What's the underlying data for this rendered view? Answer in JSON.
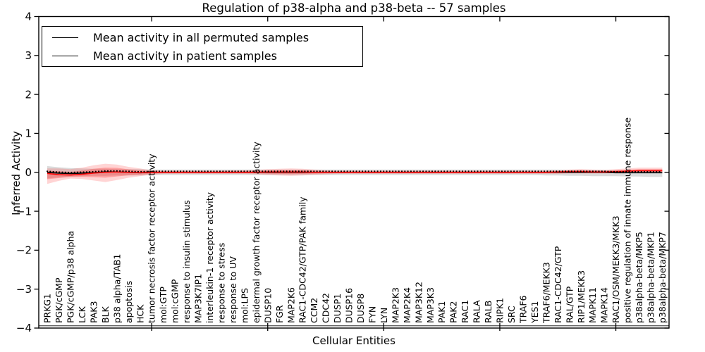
{
  "title": "Regulation of p38-alpha and p38-beta -- 57 samples",
  "legend": {
    "items": [
      {
        "label": "Mean activity in all permuted samples",
        "color": "#000000"
      },
      {
        "label": "Mean activity in patient samples",
        "color": "#ff0000"
      }
    ]
  },
  "axes": {
    "xlabel": "Cellular Entities",
    "ylabel": "Inferred Activity",
    "ytick_labels": [
      "4",
      "3",
      "2",
      "1",
      "0",
      "−1",
      "−2",
      "−3",
      "−4"
    ]
  },
  "colors": {
    "permuted_line": "#000000",
    "patient_line": "#ff0000",
    "permuted_band": "rgba(0,0,0,0.14)",
    "patient_band_outer": "rgba(255,60,60,0.22)",
    "patient_band_inner": "rgba(255,40,40,0.30)",
    "frame": "#000000"
  },
  "chart_data": {
    "type": "line",
    "title": "Regulation of p38-alpha and p38-beta -- 57 samples",
    "xlabel": "Cellular Entities",
    "ylabel": "Inferred Activity",
    "ylim": [
      -4,
      4
    ],
    "yticks": [
      4,
      3,
      2,
      1,
      0,
      -1,
      -2,
      -3,
      -4
    ],
    "grid": false,
    "legend_position": "upper left",
    "categories": [
      "PRKG1",
      "PGK/cGMP",
      "PGK/cGMP/p38 alpha",
      "LCK",
      "PAK3",
      "BLK",
      "p38 alpha/TAB1",
      "apoptosis",
      "HCK",
      "tumor necrosis factor receptor activity",
      "mol:GTP",
      "mol:cGMP",
      "response to insulin stimulus",
      "MAP3K7IP1",
      "interleukin-1 receptor activity",
      "response to stress",
      "response to UV",
      "mol:LPS",
      "epidermal growth factor receptor activity",
      "DUSP10",
      "FGR",
      "MAP2K6",
      "RAC1-CDC42/GTP/PAK family",
      "CCM2",
      "CDC42",
      "DUSP1",
      "DUSP16",
      "DUSP8",
      "FYN",
      "LYN",
      "MAP2K3",
      "MAP2K4",
      "MAP3K12",
      "MAP3K3",
      "PAK1",
      "PAK2",
      "RAC1",
      "RALA",
      "RALB",
      "RIPK1",
      "SRC",
      "TRAF6",
      "YES1",
      "TRAF6/MEKK3",
      "RAC1-CDC42/GTP",
      "RAL/GTP",
      "RIP1/MEKK3",
      "MAPK11",
      "MAPK14",
      "RAC1/OSM/MEKK3/MKK3",
      "positive regulation of innate immune response",
      "p38alpha-beta/MKP5",
      "p38alpha-beta/MKP1",
      "p38alpha-beta/MKP7"
    ],
    "xticks_at_category_index": [
      9,
      19,
      29,
      39,
      49
    ],
    "series": [
      {
        "name": "Mean activity in all permuted samples",
        "color": "#000000",
        "values": [
          0,
          -0.02,
          -0.03,
          -0.02,
          -0.01,
          0.01,
          0.01,
          0,
          -0.01,
          0,
          0,
          0,
          0,
          0,
          0,
          0,
          0,
          0,
          0,
          0,
          0,
          0,
          0,
          0,
          0,
          0,
          0,
          0,
          0,
          0,
          0,
          0,
          0,
          0,
          0,
          0,
          0,
          0,
          0,
          0,
          0,
          0,
          0,
          0,
          0,
          0,
          0,
          0,
          0,
          -0.01,
          -0.01,
          -0.01,
          -0.01,
          -0.01
        ]
      },
      {
        "name": "Mean activity in patient samples",
        "color": "#ff0000",
        "values": [
          -0.03,
          -0.06,
          -0.07,
          -0.05,
          -0.02,
          0,
          0.01,
          0,
          -0.01,
          0,
          0,
          0,
          0,
          0,
          0,
          0,
          0,
          0,
          0,
          0.01,
          0.01,
          0.01,
          0.01,
          0,
          0,
          0,
          0,
          0,
          0,
          0,
          0,
          0,
          0,
          0,
          0,
          0,
          0,
          0,
          0,
          0,
          0,
          0,
          0,
          0,
          0.01,
          0.02,
          0.02,
          0.01,
          0.01,
          0.02,
          0.03,
          0.04,
          0.04,
          0.04
        ]
      }
    ],
    "bands": [
      {
        "name": "permuted samples range",
        "upper": [
          0.16,
          0.13,
          0.11,
          0.1,
          0.09,
          0.09,
          0.08,
          0.08,
          0.08,
          0.07,
          0.07,
          0.07,
          0.07,
          0.07,
          0.07,
          0.07,
          0.07,
          0.07,
          0.07,
          0.07,
          0.07,
          0.07,
          0.07,
          0.07,
          0.07,
          0.07,
          0.07,
          0.07,
          0.07,
          0.07,
          0.07,
          0.07,
          0.07,
          0.07,
          0.07,
          0.07,
          0.07,
          0.07,
          0.07,
          0.07,
          0.07,
          0.07,
          0.07,
          0.07,
          0.07,
          0.06,
          0.06,
          0.06,
          0.06,
          0.05,
          0.05,
          0.05,
          0.05,
          0.06
        ],
        "lower": [
          -0.16,
          -0.13,
          -0.11,
          -0.1,
          -0.09,
          -0.09,
          -0.08,
          -0.08,
          -0.08,
          -0.07,
          -0.07,
          -0.07,
          -0.07,
          -0.07,
          -0.07,
          -0.07,
          -0.07,
          -0.07,
          -0.07,
          -0.07,
          -0.07,
          -0.07,
          -0.07,
          -0.07,
          -0.07,
          -0.07,
          -0.07,
          -0.07,
          -0.07,
          -0.07,
          -0.07,
          -0.07,
          -0.07,
          -0.07,
          -0.07,
          -0.07,
          -0.07,
          -0.07,
          -0.07,
          -0.07,
          -0.07,
          -0.07,
          -0.07,
          -0.08,
          -0.08,
          -0.09,
          -0.09,
          -0.1,
          -0.1,
          -0.1,
          -0.11,
          -0.11,
          -0.12,
          -0.12
        ]
      },
      {
        "name": "patient samples range",
        "upper": [
          0.1,
          0.1,
          0.08,
          0.12,
          0.18,
          0.22,
          0.2,
          0.14,
          0.1,
          0.05,
          0.04,
          0.04,
          0.04,
          0.04,
          0.04,
          0.04,
          0.05,
          0.05,
          0.06,
          0.08,
          0.09,
          0.1,
          0.09,
          0.07,
          0.05,
          0.04,
          0.04,
          0.04,
          0.04,
          0.04,
          0.04,
          0.04,
          0.04,
          0.04,
          0.04,
          0.04,
          0.04,
          0.04,
          0.04,
          0.04,
          0.04,
          0.04,
          0.04,
          0.04,
          0.05,
          0.07,
          0.08,
          0.07,
          0.06,
          0.08,
          0.1,
          0.12,
          0.12,
          0.12
        ],
        "lower": [
          -0.3,
          -0.22,
          -0.16,
          -0.17,
          -0.21,
          -0.25,
          -0.2,
          -0.14,
          -0.1,
          -0.06,
          -0.04,
          -0.04,
          -0.04,
          -0.04,
          -0.04,
          -0.04,
          -0.04,
          -0.04,
          -0.05,
          -0.07,
          -0.08,
          -0.09,
          -0.08,
          -0.06,
          -0.05,
          -0.04,
          -0.04,
          -0.04,
          -0.04,
          -0.04,
          -0.04,
          -0.04,
          -0.04,
          -0.04,
          -0.04,
          -0.04,
          -0.04,
          -0.04,
          -0.04,
          -0.04,
          -0.04,
          -0.04,
          -0.04,
          -0.04,
          -0.04,
          -0.03,
          -0.03,
          -0.03,
          -0.03,
          -0.02,
          -0.01,
          -0.01,
          -0.01,
          -0.01
        ]
      }
    ]
  }
}
